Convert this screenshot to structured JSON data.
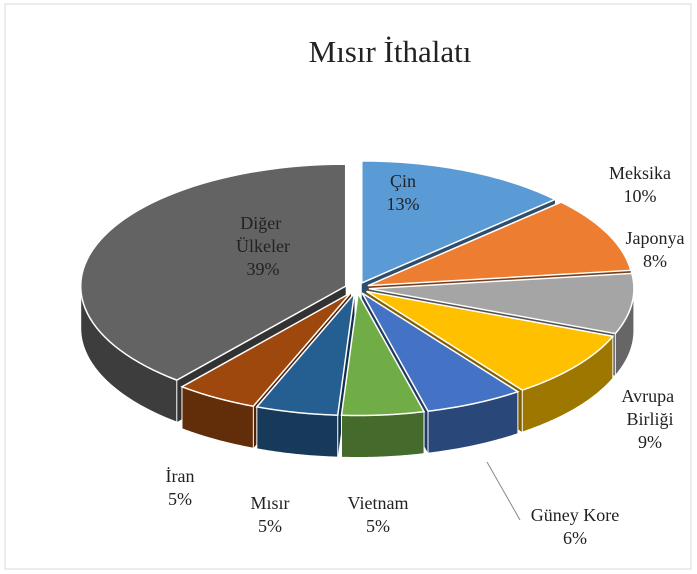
{
  "chart_data": {
    "type": "pie",
    "title": "Mısır İthalatı",
    "categories": [
      "Çin",
      "Meksika",
      "Japonya",
      "Avrupa Birliği",
      "Güney Kore",
      "Vietnam",
      "Mısır",
      "İran",
      "Diğer Ülkeler"
    ],
    "values": [
      13,
      10,
      8,
      9,
      6,
      5,
      5,
      5,
      39
    ],
    "value_labels": [
      "13%",
      "10%",
      "8%",
      "9%",
      "6%",
      "5%",
      "5%",
      "5%",
      "39%"
    ],
    "colors": [
      "#5b9bd5",
      "#ed7d31",
      "#a5a5a5",
      "#ffc000",
      "#4472c4",
      "#70ad47",
      "#255e91",
      "#9e480e",
      "#636363"
    ]
  }
}
